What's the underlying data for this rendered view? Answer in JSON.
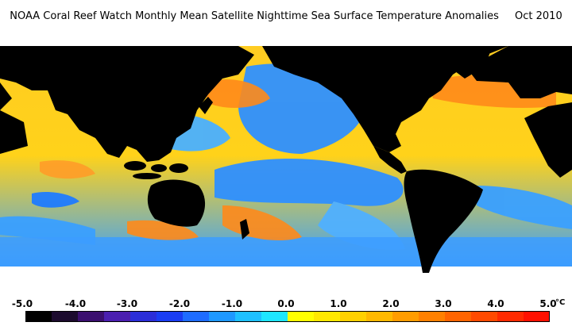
{
  "title": {
    "text": "NOAA Coral Reef Watch Monthly Mean Satellite Nighttime Sea Surface Temperature Anomalies",
    "date": "Oct 2010"
  },
  "legend": {
    "unit": "°C",
    "ticks": [
      "-5.0",
      "-4.0",
      "-3.0",
      "-2.0",
      "-1.0",
      "0.0",
      "1.0",
      "2.0",
      "3.0",
      "4.0",
      "5.0"
    ],
    "swatches": [
      "#000000",
      "#1c0b2e",
      "#3b0f6f",
      "#4b1fb0",
      "#2b2ed8",
      "#1a3df2",
      "#1e6cff",
      "#1e98ff",
      "#1ec0ff",
      "#1ee6ff",
      "#ffff00",
      "#ffe800",
      "#ffd000",
      "#ffb800",
      "#ff9c00",
      "#ff8000",
      "#ff6400",
      "#ff4a00",
      "#ff2a00",
      "#ff1000"
    ]
  },
  "colors": {
    "land": "#000000",
    "ice": "#ffffff",
    "ocean_warm": "#ffb400",
    "ocean_cool": "#30a0ff"
  }
}
